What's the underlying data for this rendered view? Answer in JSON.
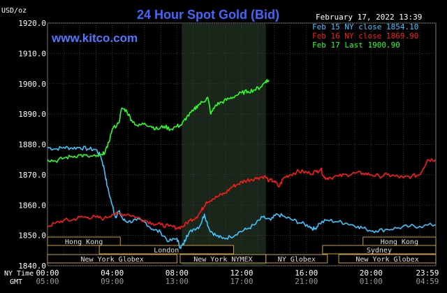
{
  "header": {
    "title": "24 Hour Spot Gold (Bid)",
    "unit": "USD/oz",
    "brand": "www.kitco.com",
    "timestamp": "February 17, 2022 13:39"
  },
  "legend": [
    {
      "text": "Feb 15 NY close 1854.10",
      "color": "#3fc4ff"
    },
    {
      "text": "Feb 16 NY close 1869.90",
      "color": "#ff1a1a"
    },
    {
      "text": "Feb 17 Last 1900.90",
      "color": "#2dff2d"
    }
  ],
  "sessions": [
    {
      "label": "Hong Kong",
      "start": -0.5,
      "end": 4.5,
      "row": 0
    },
    {
      "label": "Hong Kong",
      "start": 19.5,
      "end": 24,
      "row": 0
    },
    {
      "label": "London",
      "start": 3.2,
      "end": 11.5,
      "row": 1
    },
    {
      "label": "Sydney",
      "start": 17,
      "end": 24,
      "row": 1
    },
    {
      "label": "New York Globex",
      "start": -0.5,
      "end": 8,
      "row": 2
    },
    {
      "label": "New York NYMEX",
      "start": 8.2,
      "end": 13.5,
      "row": 2
    },
    {
      "label": "NY Globex",
      "start": 13.5,
      "end": 17.3,
      "row": 2
    },
    {
      "label": "New York Globex",
      "start": 18,
      "end": 24,
      "row": 2
    }
  ],
  "footer": {
    "ny_label": "NY Time",
    "gmt_label": "GMT",
    "ny_ticks": [
      "00:00",
      "04:00",
      "08:00",
      "12:00",
      "16:00",
      "20:00",
      "23:59"
    ],
    "gmt_ticks": [
      "05:00",
      "09:00",
      "13:00",
      "17:00",
      "21:00",
      "01:00",
      "04:59"
    ]
  },
  "chart_data": {
    "type": "line",
    "title": "24 Hour Spot Gold (Bid)",
    "ylabel": "USD/oz",
    "xlabel": "NY Time / GMT",
    "x_unit": "hours since 00:00 NY time",
    "ylim": [
      1840,
      1920
    ],
    "xlim": [
      0,
      24
    ],
    "yticks": [
      1840,
      1850,
      1860,
      1870,
      1880,
      1890,
      1900,
      1910,
      1920
    ],
    "ytick_labels": [
      "1840.0",
      "1850.0",
      "1860.0",
      "1870.0",
      "1880.0",
      "1890.0",
      "1900.0",
      "1910.0",
      "1920.0"
    ],
    "xticks": [
      0,
      4,
      8,
      12,
      16,
      20,
      23.98
    ],
    "grid": true,
    "legend_position": "top-right",
    "shaded_region": [
      8.3,
      13.5
    ],
    "series": [
      {
        "name": "Feb 15 NY close 1854.10",
        "color": "#3fc4ff",
        "points": [
          [
            0,
            1879
          ],
          [
            0.5,
            1878.5
          ],
          [
            1,
            1879
          ],
          [
            1.5,
            1878.8
          ],
          [
            2,
            1879
          ],
          [
            2.5,
            1878.5
          ],
          [
            3,
            1878.3
          ],
          [
            3.3,
            1876
          ],
          [
            3.5,
            1872
          ],
          [
            3.7,
            1866
          ],
          [
            4,
            1860
          ],
          [
            4.2,
            1856
          ],
          [
            4.4,
            1858
          ],
          [
            4.7,
            1855
          ],
          [
            5,
            1854.5
          ],
          [
            5.5,
            1855
          ],
          [
            6,
            1854.5
          ],
          [
            6.5,
            1852
          ],
          [
            7,
            1851
          ],
          [
            7.5,
            1848
          ],
          [
            8,
            1849
          ],
          [
            8.2,
            1846
          ],
          [
            8.4,
            1847
          ],
          [
            8.6,
            1850
          ],
          [
            9,
            1852
          ],
          [
            9.4,
            1853
          ],
          [
            9.7,
            1857
          ],
          [
            10,
            1852
          ],
          [
            10.4,
            1850
          ],
          [
            10.8,
            1849
          ],
          [
            11.3,
            1849.5
          ],
          [
            11.8,
            1851
          ],
          [
            12.3,
            1852
          ],
          [
            12.8,
            1853.5
          ],
          [
            13.3,
            1856
          ],
          [
            13.8,
            1855
          ],
          [
            14.2,
            1857
          ],
          [
            14.7,
            1856
          ],
          [
            15.2,
            1855
          ],
          [
            15.7,
            1854
          ],
          [
            16.2,
            1853
          ],
          [
            16.5,
            1852
          ],
          [
            16.8,
            1854
          ],
          [
            17.3,
            1855
          ],
          [
            18,
            1854.5
          ],
          [
            18.5,
            1854
          ],
          [
            19.2,
            1853
          ],
          [
            19.7,
            1852
          ],
          [
            20.3,
            1851.5
          ],
          [
            21,
            1852
          ],
          [
            21.7,
            1852.5
          ],
          [
            22.4,
            1853
          ],
          [
            23,
            1853
          ],
          [
            23.98,
            1853.5
          ]
        ]
      },
      {
        "name": "Feb 16 NY close 1869.90",
        "color": "#ff1a1a",
        "points": [
          [
            0,
            1853
          ],
          [
            0.5,
            1854
          ],
          [
            1,
            1855
          ],
          [
            1.5,
            1855
          ],
          [
            2,
            1856
          ],
          [
            2.5,
            1856
          ],
          [
            3,
            1856
          ],
          [
            3.5,
            1855.5
          ],
          [
            4,
            1857
          ],
          [
            4.5,
            1857
          ],
          [
            5,
            1857
          ],
          [
            5.5,
            1856
          ],
          [
            6,
            1855
          ],
          [
            6.5,
            1854
          ],
          [
            7,
            1853.5
          ],
          [
            7.5,
            1853
          ],
          [
            8,
            1852.5
          ],
          [
            8.4,
            1853
          ],
          [
            8.8,
            1855
          ],
          [
            9.2,
            1856
          ],
          [
            9.5,
            1858
          ],
          [
            9.8,
            1861
          ],
          [
            10.2,
            1862
          ],
          [
            10.6,
            1863
          ],
          [
            11,
            1864
          ],
          [
            11.4,
            1866
          ],
          [
            11.8,
            1867
          ],
          [
            12.2,
            1868
          ],
          [
            12.6,
            1868.5
          ],
          [
            13,
            1869
          ],
          [
            13.4,
            1869.5
          ],
          [
            13.7,
            1868
          ],
          [
            14,
            1868
          ],
          [
            14.3,
            1866
          ],
          [
            14.6,
            1869
          ],
          [
            15,
            1870
          ],
          [
            15.4,
            1871
          ],
          [
            15.8,
            1871
          ],
          [
            16.2,
            1870.5
          ],
          [
            16.6,
            1871
          ],
          [
            16.9,
            1872
          ],
          [
            17.1,
            1869
          ],
          [
            17.4,
            1869
          ],
          [
            18,
            1869.5
          ],
          [
            18.5,
            1870
          ],
          [
            19,
            1870.5
          ],
          [
            19.5,
            1870.5
          ],
          [
            20,
            1870
          ],
          [
            20.5,
            1869.5
          ],
          [
            21,
            1870
          ],
          [
            21.5,
            1869.5
          ],
          [
            22,
            1869
          ],
          [
            22.5,
            1869.5
          ],
          [
            23,
            1870
          ],
          [
            23.2,
            1872
          ],
          [
            23.5,
            1875
          ],
          [
            23.98,
            1875
          ]
        ]
      },
      {
        "name": "Feb 17 Last 1900.90",
        "color": "#2dff2d",
        "points": [
          [
            0,
            1875
          ],
          [
            0.5,
            1874.5
          ],
          [
            1,
            1875.5
          ],
          [
            1.5,
            1876
          ],
          [
            2,
            1876.5
          ],
          [
            2.5,
            1876
          ],
          [
            3,
            1876
          ],
          [
            3.4,
            1876.5
          ],
          [
            3.7,
            1879
          ],
          [
            4,
            1885
          ],
          [
            4.4,
            1887
          ],
          [
            4.6,
            1892
          ],
          [
            4.9,
            1891
          ],
          [
            5.2,
            1888
          ],
          [
            5.6,
            1886
          ],
          [
            6,
            1887
          ],
          [
            6.4,
            1886
          ],
          [
            6.8,
            1885
          ],
          [
            7.2,
            1886
          ],
          [
            7.6,
            1885
          ],
          [
            8,
            1886
          ],
          [
            8.3,
            1886.5
          ],
          [
            8.6,
            1889
          ],
          [
            9,
            1891
          ],
          [
            9.3,
            1893
          ],
          [
            9.6,
            1894
          ],
          [
            9.9,
            1895.5
          ],
          [
            10.1,
            1890
          ],
          [
            10.4,
            1893
          ],
          [
            10.8,
            1894
          ],
          [
            11.2,
            1895
          ],
          [
            11.6,
            1896
          ],
          [
            12,
            1897
          ],
          [
            12.4,
            1897.5
          ],
          [
            12.8,
            1898
          ],
          [
            13.2,
            1899
          ],
          [
            13.5,
            1901
          ],
          [
            13.7,
            1901
          ]
        ]
      }
    ]
  }
}
